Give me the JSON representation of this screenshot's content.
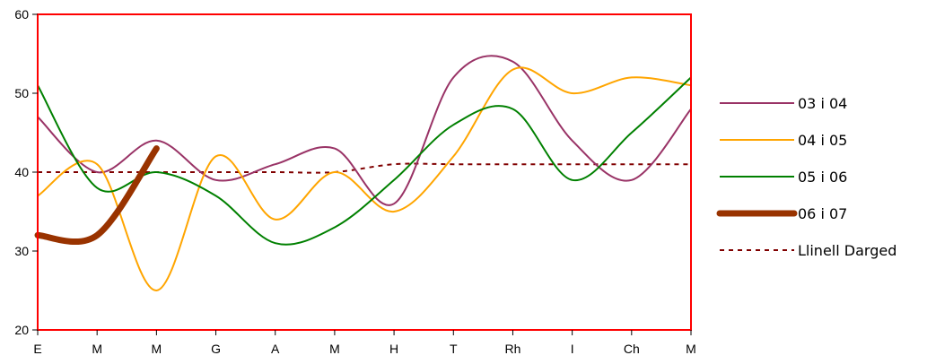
{
  "chart_data": {
    "type": "line",
    "title": "",
    "xlabel": "",
    "ylabel": "",
    "categories": [
      "E",
      "M",
      "M",
      "G",
      "A",
      "M",
      "H",
      "T",
      "Rh",
      "I",
      "Ch",
      "M"
    ],
    "ylim": [
      20,
      60
    ],
    "yticks": [
      "20",
      "30",
      "40",
      "50",
      "60"
    ],
    "grid": false,
    "legend_position": "right",
    "plot_border_color": "#ff0000",
    "series": [
      {
        "name": "03 i 04",
        "color": "#993366",
        "style": "solid",
        "thickness": "thin",
        "values": [
          47,
          40,
          44,
          39,
          41,
          43,
          36,
          52,
          54,
          44,
          39,
          48
        ]
      },
      {
        "name": "04 i 05",
        "color": "#ffa500",
        "style": "solid",
        "thickness": "thin",
        "values": [
          37,
          41,
          25,
          42,
          34,
          40,
          35,
          42,
          53,
          50,
          52,
          51
        ]
      },
      {
        "name": "05 i 06",
        "color": "#008000",
        "style": "solid",
        "thickness": "thin",
        "values": [
          51,
          38,
          40,
          37,
          31,
          33,
          39,
          46,
          48,
          39,
          45,
          52
        ]
      },
      {
        "name": "06 i 07",
        "color": "#993300",
        "style": "solid",
        "thickness": "thick",
        "values": [
          32,
          32,
          43,
          null,
          null,
          null,
          null,
          null,
          null,
          null,
          null,
          null
        ]
      },
      {
        "name": "Llinell Darged",
        "color": "#800000",
        "style": "dotted",
        "thickness": "thin",
        "values": [
          40,
          40,
          40,
          40,
          40,
          40,
          41,
          41,
          41,
          41,
          41,
          41
        ]
      }
    ]
  }
}
